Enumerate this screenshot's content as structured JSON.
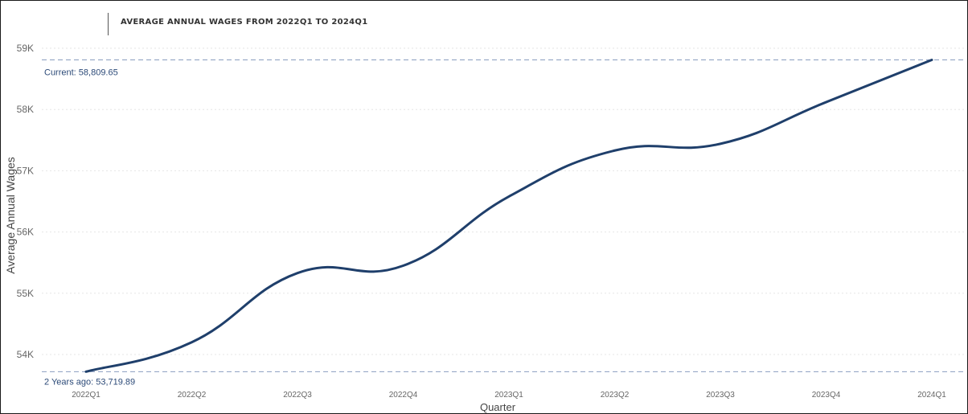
{
  "chart_data": {
    "type": "line",
    "title": "AVERAGE ANNUAL WAGES FROM 2022Q1 TO 2024Q1",
    "xlabel": "Quarter",
    "ylabel": "Average Annual Wages",
    "categories": [
      "2022Q1",
      "2022Q2",
      "2022Q3",
      "2022Q4",
      "2023Q1",
      "2023Q2",
      "2023Q3",
      "2023Q4",
      "2024Q1"
    ],
    "series": [
      {
        "values": [
          53719.89,
          54200,
          55330,
          55450,
          56580,
          57330,
          57440,
          58120,
          58809.65
        ]
      }
    ],
    "yticks": [
      54000,
      55000,
      56000,
      57000,
      58000,
      59000
    ],
    "ytick_labels": [
      "54K",
      "55K",
      "56K",
      "57K",
      "58K",
      "59K"
    ],
    "ylim": [
      53550,
      59180
    ],
    "reference_lines": [
      {
        "value": 58809.65,
        "label": "Current: 58,809.65"
      },
      {
        "value": 53719.89,
        "label": "2 Years ago: 53,719.89"
      }
    ],
    "line_color": "#1f3f6b",
    "reference_color": "#8a9dc0",
    "grid": true
  }
}
